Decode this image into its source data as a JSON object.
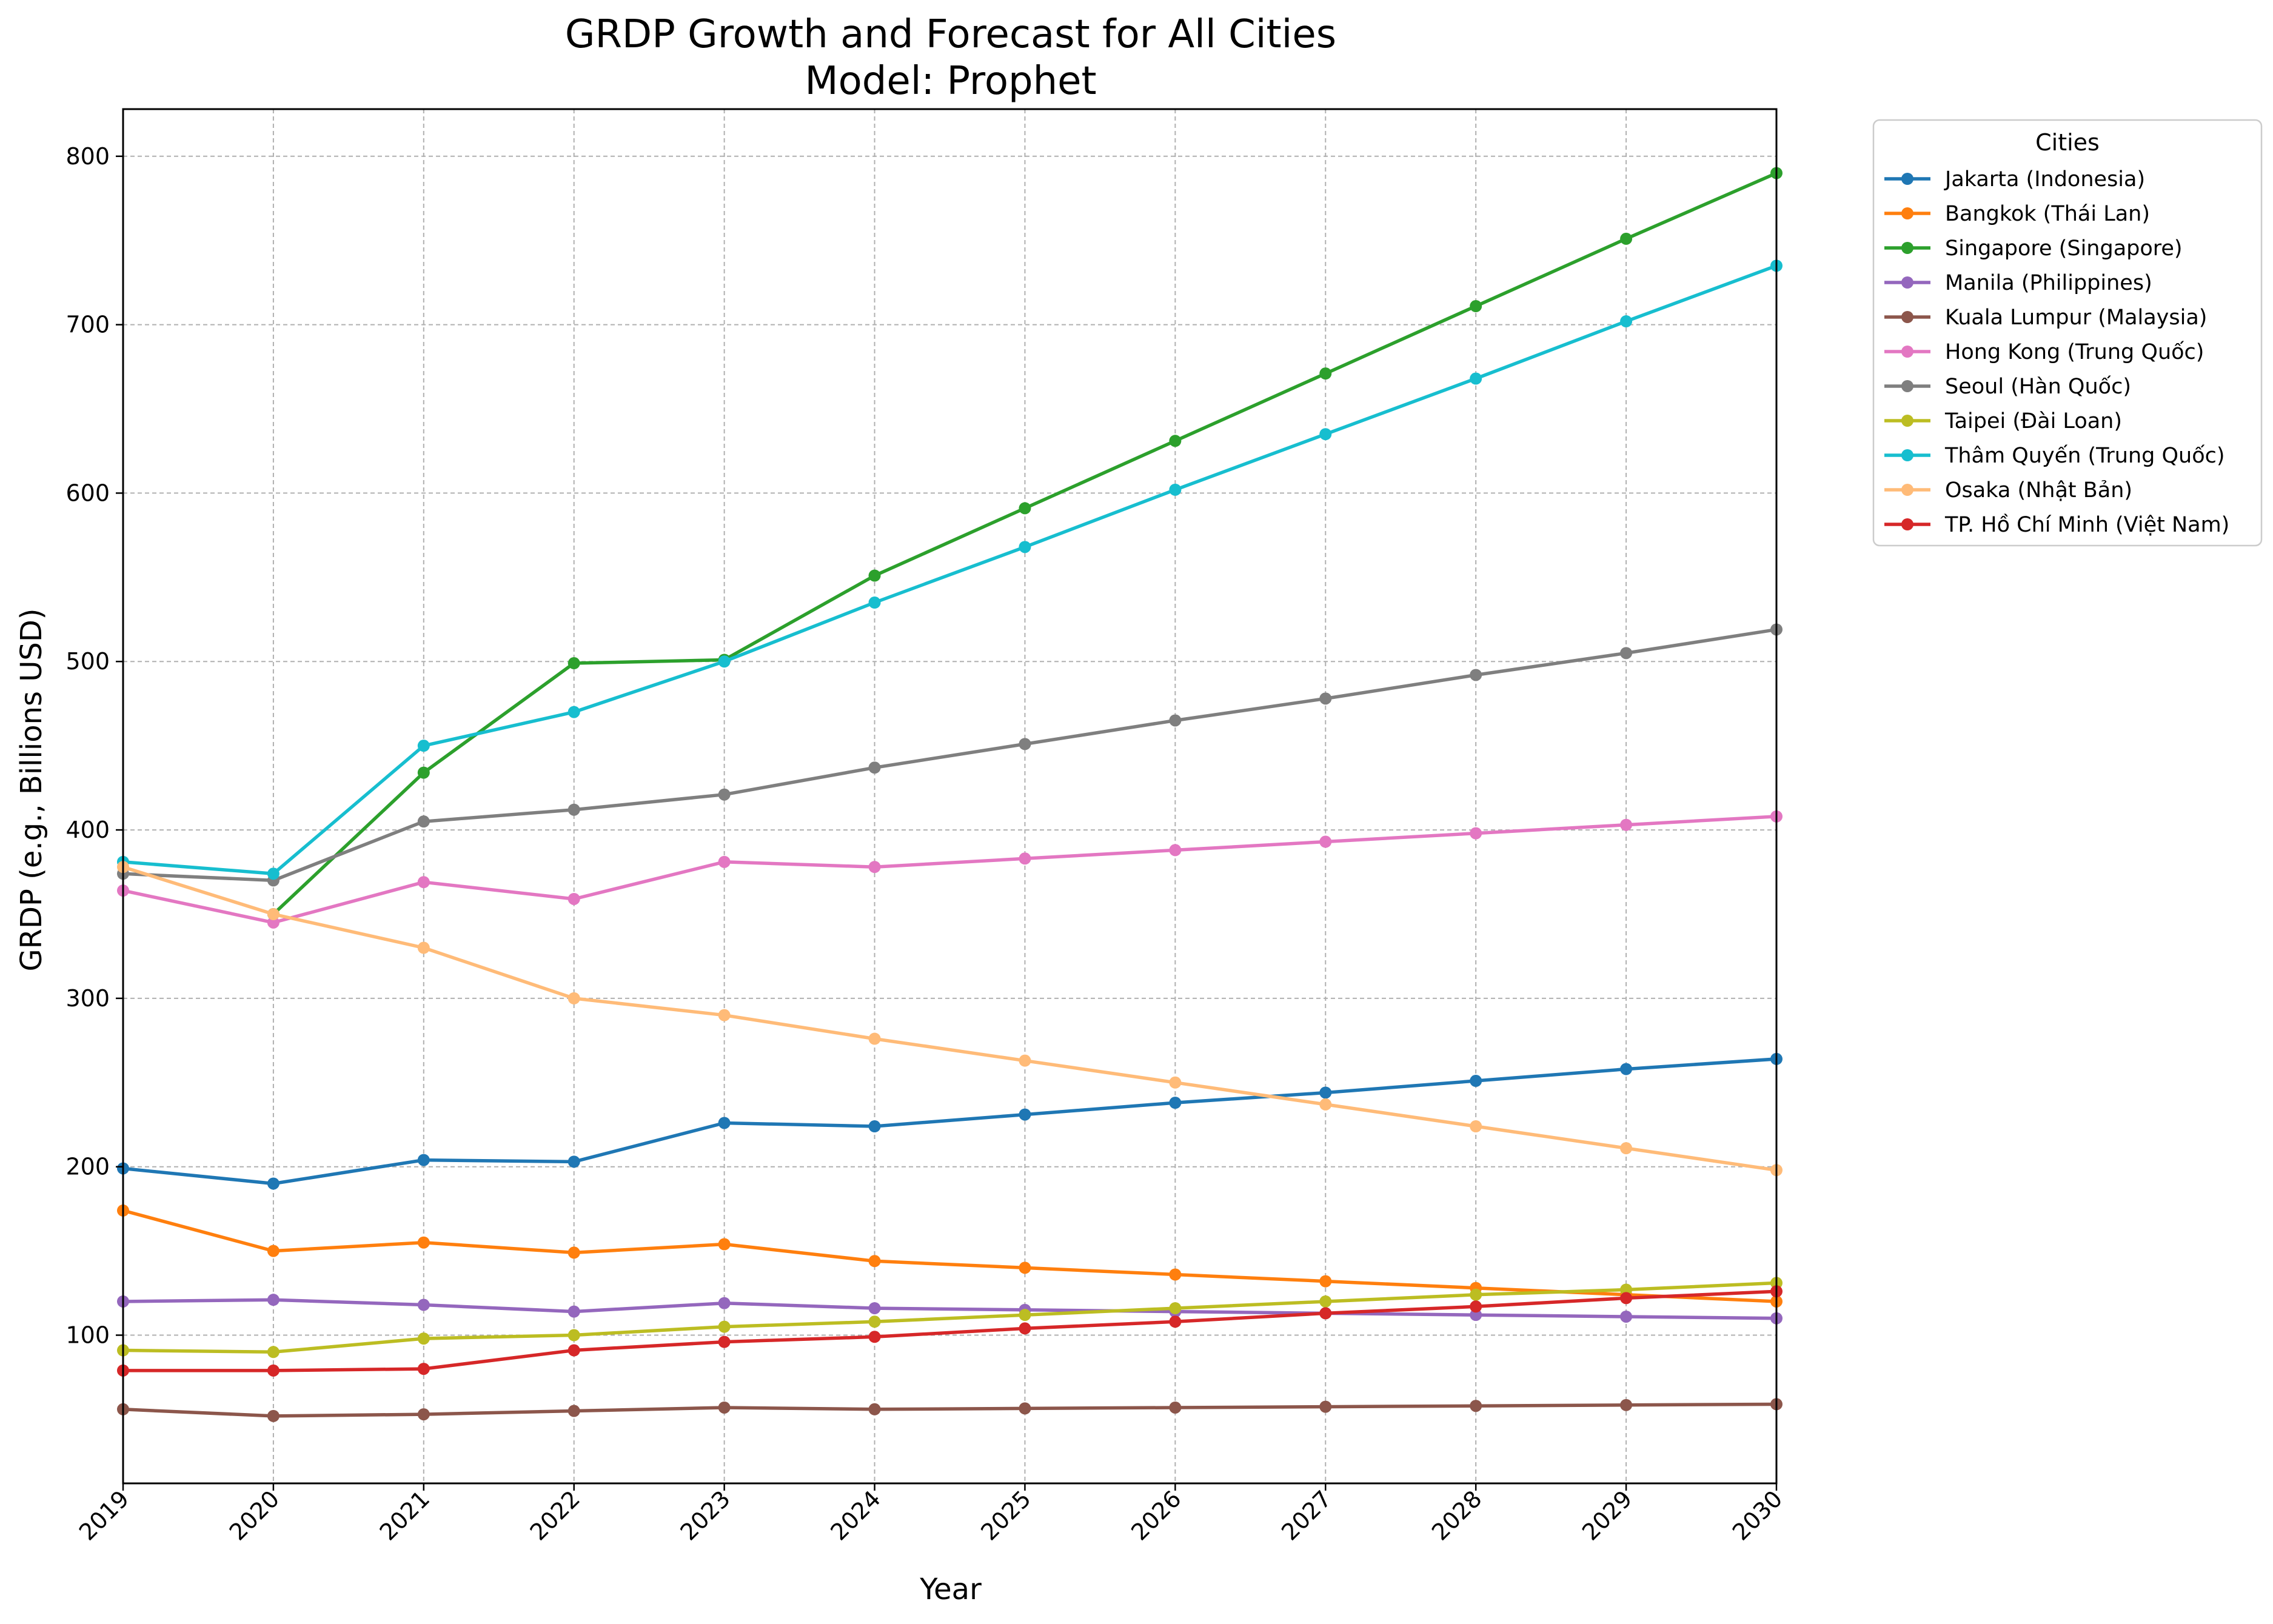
{
  "chart_data": {
    "type": "line",
    "title": "GRDP Growth and Forecast for All Cities",
    "subtitle": "Model: Prophet",
    "xlabel": "Year",
    "ylabel": "GRDP (e.g., Billions USD)",
    "xlim": [
      2019,
      2030
    ],
    "ylim": [
      12,
      828
    ],
    "x_ticks": [
      "2019",
      "2020",
      "2021",
      "2022",
      "2023",
      "2024",
      "2025",
      "2026",
      "2027",
      "2028",
      "2029",
      "2030"
    ],
    "y_ticks": [
      "100",
      "200",
      "300",
      "400",
      "500",
      "600",
      "700",
      "800"
    ],
    "grid": true,
    "legend_title": "Cities",
    "legend_placement": "outside-top-right",
    "x": [
      2019,
      2020,
      2021,
      2022,
      2023,
      2024,
      2025,
      2026,
      2027,
      2028,
      2029,
      2030
    ],
    "series": [
      {
        "name": "Jakarta (Indonesia)",
        "color": "#1f77b4",
        "values": [
          199,
          190,
          204,
          203,
          226,
          224,
          231,
          238,
          244,
          251,
          258,
          264
        ]
      },
      {
        "name": "Bangkok (Thái Lan)",
        "color": "#ff7f0e",
        "values": [
          174,
          150,
          155,
          149,
          154,
          144,
          140,
          136,
          132,
          128,
          124,
          120
        ]
      },
      {
        "name": "Singapore (Singapore)",
        "color": "#2ca02c",
        "values": [
          null,
          350,
          434,
          499,
          501,
          551,
          591,
          631,
          671,
          711,
          751,
          790
        ]
      },
      {
        "name": "Manila (Philippines)",
        "color": "#9467bd",
        "values": [
          120,
          121,
          118,
          114,
          119,
          116,
          115,
          114,
          113,
          112,
          111,
          110
        ]
      },
      {
        "name": "Kuala Lumpur (Malaysia)",
        "color": "#8c564b",
        "values": [
          56,
          52,
          53,
          55,
          57,
          56,
          56.5,
          57,
          57.5,
          58,
          58.5,
          59
        ]
      },
      {
        "name": "Hong Kong (Trung Quốc)",
        "color": "#e377c2",
        "values": [
          364,
          345,
          369,
          359,
          381,
          378,
          383,
          388,
          393,
          398,
          403,
          408
        ]
      },
      {
        "name": "Seoul (Hàn Quốc)",
        "color": "#7f7f7f",
        "values": [
          374,
          370,
          405,
          412,
          421,
          437,
          451,
          465,
          478,
          492,
          505,
          519
        ]
      },
      {
        "name": "Taipei (Đài Loan)",
        "color": "#bcbd22",
        "values": [
          91,
          90,
          98,
          100,
          105,
          108,
          112,
          116,
          120,
          124,
          127,
          131
        ]
      },
      {
        "name": "Thâm Quyến (Trung Quốc)",
        "color": "#17becf",
        "values": [
          381,
          374,
          450,
          470,
          500,
          535,
          568,
          602,
          635,
          668,
          702,
          735
        ]
      },
      {
        "name": "Osaka (Nhật Bản)",
        "color": "#ffbb78",
        "values": [
          378,
          350,
          330,
          300,
          290,
          276,
          263,
          250,
          237,
          224,
          211,
          198
        ]
      },
      {
        "name": "TP. Hồ Chí Minh (Việt Nam)",
        "color": "#d62728",
        "values": [
          79,
          79,
          80,
          91,
          96,
          99,
          104,
          108,
          113,
          117,
          122,
          126
        ]
      }
    ]
  }
}
